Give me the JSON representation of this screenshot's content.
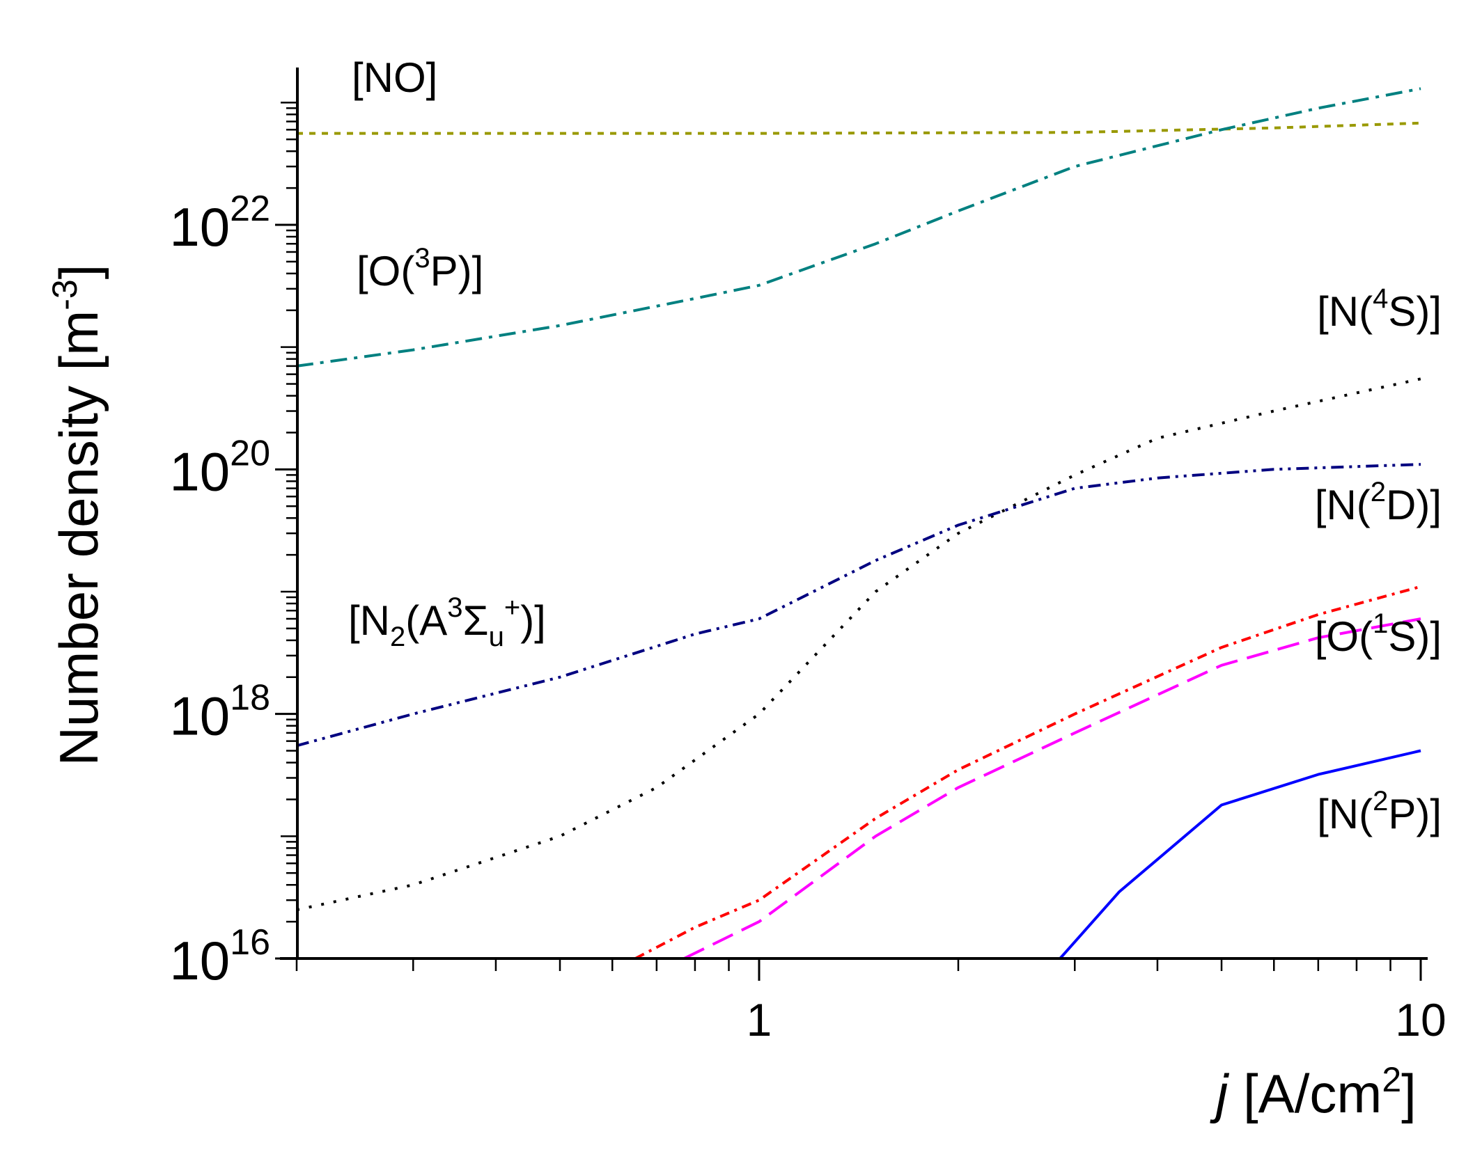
{
  "chart_data": {
    "type": "line",
    "xscale": "log",
    "yscale": "log",
    "xlabel": {
      "italic": "j",
      "text": " [A/cm",
      "sup": "2",
      "close": "]"
    },
    "ylabel": {
      "text": "Number density [m",
      "sup": "-3",
      "close": "]"
    },
    "xlim": [
      0.2,
      10
    ],
    "ylim": [
      1e+16,
      2e+23
    ],
    "x_ticks": [
      {
        "value": 1,
        "label": "1"
      },
      {
        "value": 10,
        "label": "10"
      }
    ],
    "y_ticks": [
      {
        "value": 1e+16,
        "base": "10",
        "exp": "16"
      },
      {
        "value": 1e+18,
        "base": "10",
        "exp": "18"
      },
      {
        "value": 1e+20,
        "base": "10",
        "exp": "20"
      },
      {
        "value": 1e+22,
        "base": "10",
        "exp": "22"
      }
    ],
    "series": [
      {
        "name": "NO",
        "color": "#999900",
        "dash": "9,9",
        "x": [
          0.2,
          1,
          3,
          6,
          10
        ],
        "y": [
          5.6e+22,
          5.6e+22,
          5.7e+22,
          6.2e+22,
          6.8e+22
        ]
      },
      {
        "name": "O(3P)",
        "color": "#008080",
        "dash": "24,10,5,10",
        "x": [
          0.2,
          0.3,
          0.5,
          0.8,
          1,
          1.5,
          2,
          3,
          5,
          7,
          10
        ],
        "y": [
          7e+20,
          9.5e+20,
          1.5e+21,
          2.5e+21,
          3.2e+21,
          7e+21,
          1.3e+22,
          3e+22,
          6e+22,
          9e+22,
          1.3e+23
        ]
      },
      {
        "name": "N(4S)",
        "color": "#000000",
        "dash": "4,14",
        "x": [
          0.2,
          0.3,
          0.5,
          0.7,
          1,
          1.5,
          2,
          3,
          4,
          6,
          10
        ],
        "y": [
          2.5e+16,
          4e+16,
          1e+17,
          2.5e+17,
          1e+18,
          1e+19,
          3e+19,
          9e+19,
          1.8e+20,
          3e+20,
          5.5e+20
        ]
      },
      {
        "name": "N(2D)",
        "color": "#000080",
        "dash": "18,8,4,8,4,8",
        "x": [
          0.2,
          0.3,
          0.5,
          0.8,
          1,
          1.5,
          2,
          3,
          4,
          6,
          10
        ],
        "y": [
          5.5e+17,
          1e+18,
          2e+18,
          4.5e+18,
          6e+18,
          1.8e+19,
          3.5e+19,
          7e+19,
          8.5e+19,
          1e+20,
          1.1e+20
        ]
      },
      {
        "name": "O(1S)",
        "color": "#ff00ff",
        "dash": "32,14",
        "x": [
          0.77,
          1,
          1.5,
          2,
          3,
          5,
          7,
          10
        ],
        "y": [
          1e+16,
          2e+16,
          1e+17,
          2.5e+17,
          7e+17,
          2.5e+18,
          4.2e+18,
          6e+18
        ]
      },
      {
        "name": "red-unlabeled",
        "color": "#ff0000",
        "dash": "14,8,4,8",
        "x": [
          0.65,
          0.8,
          1,
          1.5,
          2,
          3,
          5,
          7,
          10
        ],
        "y": [
          1e+16,
          1.8e+16,
          3e+16,
          1.4e+17,
          3.5e+17,
          1e+18,
          3.5e+18,
          6.5e+18,
          1.1e+19
        ]
      },
      {
        "name": "N(2P)",
        "color": "#0000ff",
        "dash": "",
        "x": [
          2.85,
          3.5,
          5,
          7,
          10
        ],
        "y": [
          1e+16,
          3.5e+16,
          1.8e+17,
          3.2e+17,
          5e+17
        ]
      }
    ],
    "annotations": [
      {
        "id": "no",
        "parts": [
          {
            "t": "[NO]"
          }
        ]
      },
      {
        "id": "o3p",
        "parts": [
          {
            "t": "[O("
          },
          {
            "t": "3",
            "sup": true
          },
          {
            "t": "P)]"
          }
        ]
      },
      {
        "id": "n4s",
        "parts": [
          {
            "t": "[N("
          },
          {
            "t": "4",
            "sup": true
          },
          {
            "t": "S)]"
          }
        ]
      },
      {
        "id": "n2d",
        "parts": [
          {
            "t": "[N("
          },
          {
            "t": "2",
            "sup": true
          },
          {
            "t": "D)]"
          }
        ]
      },
      {
        "id": "n2a",
        "parts": [
          {
            "t": "[N"
          },
          {
            "t": "2",
            "sub": true
          },
          {
            "t": "(A"
          },
          {
            "t": "3",
            "sup": true
          },
          {
            "t": "Σ"
          },
          {
            "t": "u",
            "sub": true
          },
          {
            "t": "+",
            "sup": true
          },
          {
            "t": ")]"
          }
        ]
      },
      {
        "id": "o1s",
        "parts": [
          {
            "t": "[O("
          },
          {
            "t": "1",
            "sup": true
          },
          {
            "t": "S)]"
          }
        ]
      },
      {
        "id": "n2p",
        "parts": [
          {
            "t": "[N("
          },
          {
            "t": "2",
            "sup": true
          },
          {
            "t": "P)]"
          }
        ]
      }
    ]
  }
}
